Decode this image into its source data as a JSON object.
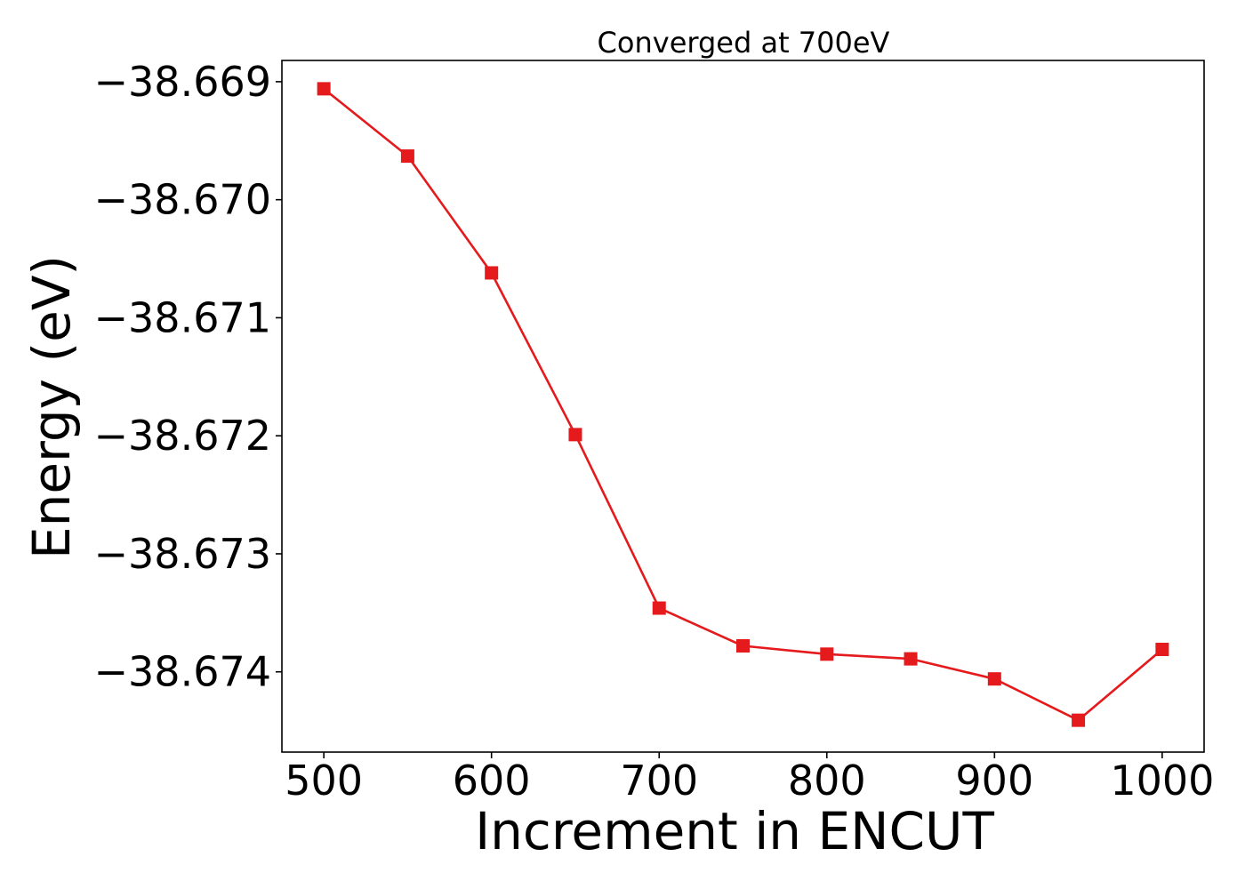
{
  "chart_data": {
    "type": "line",
    "title": "Converged at 700eV",
    "xlabel": "Increment in ENCUT",
    "ylabel": "Energy (eV)",
    "xlim": [
      475,
      1025
    ],
    "ylim": [
      -38.67468,
      -38.66882
    ],
    "x_ticks": [
      500,
      600,
      700,
      800,
      900,
      1000
    ],
    "x_tick_labels": [
      "500",
      "600",
      "700",
      "800",
      "900",
      "1000"
    ],
    "y_ticks": [
      -38.669,
      -38.67,
      -38.671,
      -38.672,
      -38.673,
      -38.674
    ],
    "y_tick_labels": [
      "−38.669",
      "−38.670",
      "−38.671",
      "−38.672",
      "−38.673",
      "−38.674"
    ],
    "grid": false,
    "legend": "none",
    "series": [
      {
        "color": "#e41a1c",
        "marker": "square",
        "x": [
          500,
          550,
          600,
          650,
          700,
          750,
          800,
          850,
          900,
          950,
          1000
        ],
        "y": [
          -38.66906,
          -38.66963,
          -38.67062,
          -38.67199,
          -38.67346,
          -38.67378,
          -38.67385,
          -38.67389,
          -38.67406,
          -38.67441,
          -38.67381
        ]
      }
    ]
  }
}
